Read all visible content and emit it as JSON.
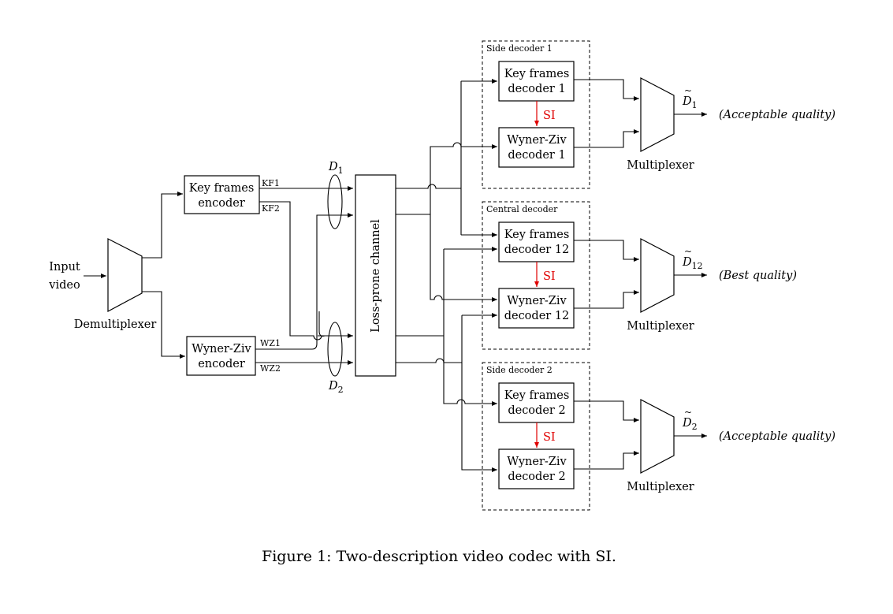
{
  "diagram": {
    "input_label": [
      "Input",
      "video"
    ],
    "demux_label": "Demultiplexer",
    "kf_encoder": [
      "Key frames",
      "encoder"
    ],
    "wz_encoder": [
      "Wyner-Ziv",
      "encoder"
    ],
    "streams": {
      "kf1": "KF1",
      "kf2": "KF2",
      "wz1": "WZ1",
      "wz2": "WZ2"
    },
    "d1": {
      "base": "D",
      "sub": "1"
    },
    "d2": {
      "base": "D",
      "sub": "2"
    },
    "channel_label": "Loss-prone channel",
    "groups": [
      {
        "title": "Side decoder 1",
        "kf_decoder": [
          "Key frames",
          "decoder 1"
        ],
        "wz_decoder": [
          "Wyner-Ziv",
          "decoder 1"
        ],
        "si_label": "SI",
        "mux_label": "Multiplexer",
        "dist": {
          "base": "D",
          "sub": "1"
        },
        "quality": "(Acceptable quality)"
      },
      {
        "title": "Central decoder",
        "kf_decoder": [
          "Key frames",
          "decoder 12"
        ],
        "wz_decoder": [
          "Wyner-Ziv",
          "decoder 12"
        ],
        "si_label": "SI",
        "mux_label": "Multiplexer",
        "dist": {
          "base": "D",
          "sub": "12"
        },
        "quality": "(Best quality)"
      },
      {
        "title": "Side decoder 2",
        "kf_decoder": [
          "Key frames",
          "decoder 2"
        ],
        "wz_decoder": [
          "Wyner-Ziv",
          "decoder 2"
        ],
        "si_label": "SI",
        "mux_label": "Multiplexer",
        "dist": {
          "base": "D",
          "sub": "2"
        },
        "quality": "(Acceptable quality)"
      }
    ],
    "caption": "Figure 1: Two-description video codec with SI.",
    "colors": {
      "si": "#e00000",
      "line": "#000000"
    }
  }
}
